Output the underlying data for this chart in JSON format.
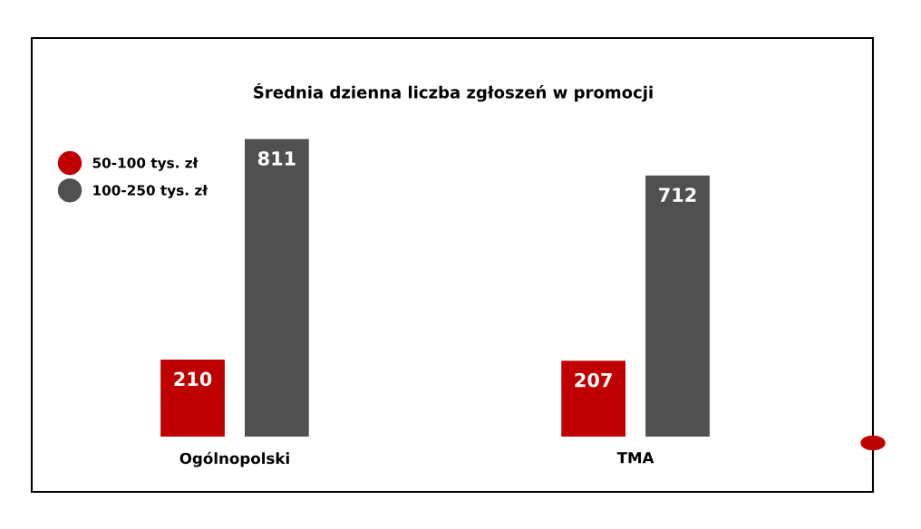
{
  "chart_data": {
    "type": "bar",
    "title": "Średnia dzienna liczba zgłoszeń w promocji",
    "categories": [
      "Ogólnopolski",
      "TMA"
    ],
    "series": [
      {
        "name": "50-100 tys. zł",
        "color": "#c00000",
        "values": [
          210,
          207
        ]
      },
      {
        "name": "100-250 tys. zł",
        "color": "#505050",
        "values": [
          811,
          712
        ]
      }
    ],
    "data_labels": true,
    "legend": "top left",
    "grid": false
  }
}
